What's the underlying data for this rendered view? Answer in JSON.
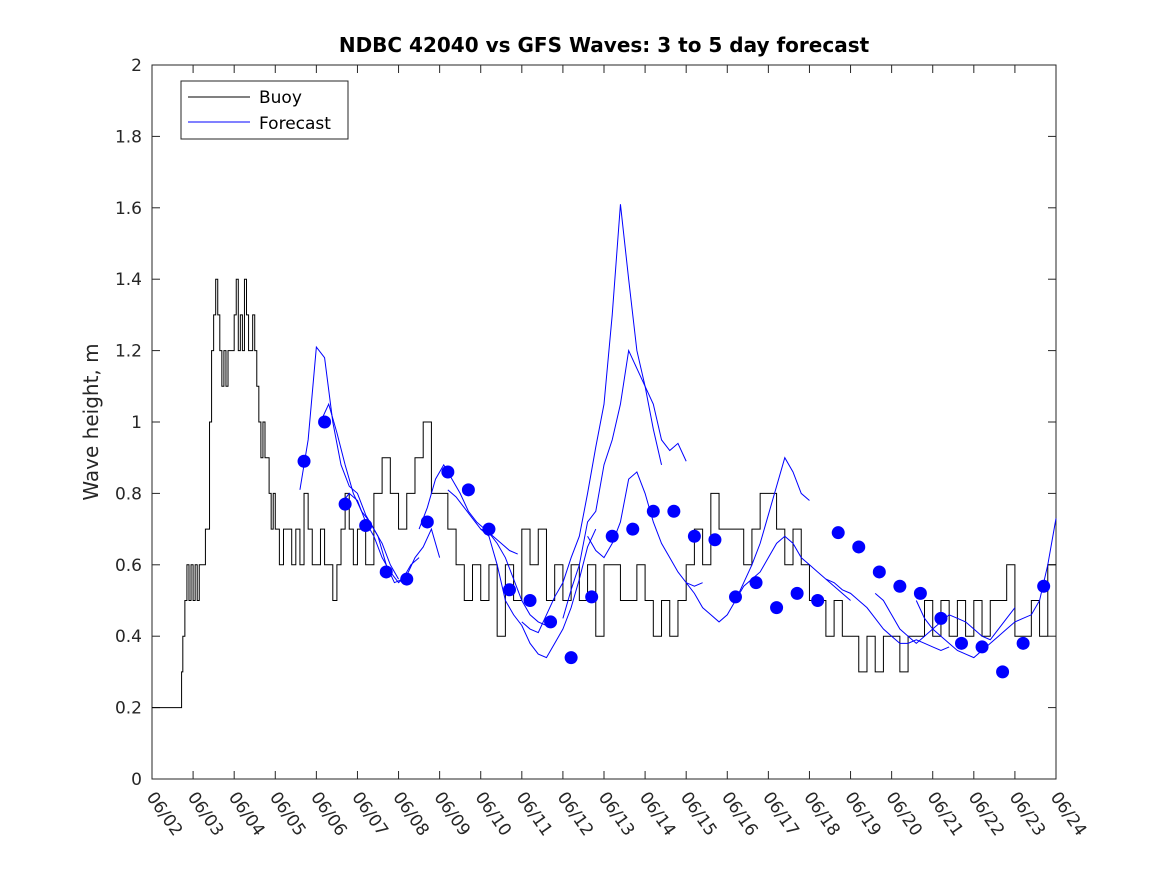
{
  "chart_data": {
    "type": "line",
    "title": "NDBC 42040 vs GFS Waves: 3 to 5 day forecast",
    "xlabel": "",
    "ylabel": "Wave height, m",
    "xlim": [
      "06/02",
      "06/24"
    ],
    "ylim": [
      0,
      2
    ],
    "x_ticks": [
      "06/02",
      "06/03",
      "06/04",
      "06/05",
      "06/06",
      "06/07",
      "06/08",
      "06/09",
      "06/10",
      "06/11",
      "06/12",
      "06/13",
      "06/14",
      "06/15",
      "06/16",
      "06/17",
      "06/18",
      "06/19",
      "06/20",
      "06/21",
      "06/22",
      "06/23",
      "06/24"
    ],
    "y_ticks": [
      0,
      0.2,
      0.4,
      0.6,
      0.8,
      1,
      1.2,
      1.4,
      1.6,
      1.8,
      2
    ],
    "y_tick_labels": [
      "0",
      "0.2",
      "0.4",
      "0.6",
      "0.8",
      "1",
      "1.2",
      "1.4",
      "1.6",
      "1.8",
      "2"
    ],
    "grid": false,
    "legend": {
      "placement": "top-left",
      "entries": [
        "Buoy",
        "Forecast"
      ]
    },
    "colors": {
      "buoy": "#000000",
      "forecast": "#0000ff",
      "marker": "#0000ff"
    },
    "series": [
      {
        "name": "Buoy",
        "color": "#000000",
        "x": [
          0,
          0.7,
          0.72,
          0.75,
          0.8,
          0.85,
          0.9,
          0.95,
          1.0,
          1.05,
          1.1,
          1.15,
          1.2,
          1.3,
          1.4,
          1.45,
          1.5,
          1.55,
          1.6,
          1.65,
          1.7,
          1.75,
          1.8,
          1.85,
          1.9,
          2.0,
          2.05,
          2.1,
          2.15,
          2.2,
          2.25,
          2.3,
          2.35,
          2.4,
          2.45,
          2.5,
          2.55,
          2.6,
          2.65,
          2.7,
          2.75,
          2.8,
          2.85,
          2.9,
          2.95,
          3.0,
          3.1,
          3.2,
          3.3,
          3.4,
          3.5,
          3.6,
          3.7,
          3.8,
          3.9,
          4.0,
          4.1,
          4.2,
          4.3,
          4.4,
          4.5,
          4.6,
          4.7,
          4.8,
          4.9,
          5.0,
          5.2,
          5.4,
          5.6,
          5.8,
          6.0,
          6.2,
          6.4,
          6.6,
          6.8,
          7.0,
          7.2,
          7.4,
          7.6,
          7.8,
          8.0,
          8.2,
          8.4,
          8.6,
          8.8,
          9.0,
          9.2,
          9.4,
          9.6,
          9.8,
          10.0,
          10.2,
          10.4,
          10.6,
          10.8,
          11.0,
          11.2,
          11.4,
          11.6,
          11.8,
          12.0,
          12.2,
          12.4,
          12.6,
          12.8,
          13.0,
          13.2,
          13.4,
          13.6,
          13.8,
          14.0,
          14.2,
          14.4,
          14.6,
          14.8,
          15.0,
          15.2,
          15.4,
          15.6,
          15.8,
          16.0,
          16.2,
          16.4,
          16.6,
          16.8,
          17.0,
          17.2,
          17.4,
          17.6,
          17.8,
          18.0,
          18.2,
          18.4,
          18.6,
          18.8,
          19.0,
          19.2,
          19.4,
          19.6,
          19.8,
          20.0,
          20.2,
          20.4,
          20.6,
          20.8,
          21.0,
          21.2,
          21.4,
          21.6,
          21.8,
          22.0
        ],
        "values": [
          0.2,
          0.2,
          0.3,
          0.4,
          0.5,
          0.6,
          0.5,
          0.6,
          0.5,
          0.6,
          0.5,
          0.6,
          0.6,
          0.7,
          1.0,
          1.2,
          1.3,
          1.4,
          1.3,
          1.2,
          1.1,
          1.2,
          1.1,
          1.2,
          1.2,
          1.3,
          1.4,
          1.2,
          1.3,
          1.2,
          1.4,
          1.3,
          1.2,
          1.2,
          1.3,
          1.2,
          1.1,
          1.0,
          0.9,
          1.0,
          0.9,
          0.9,
          0.8,
          0.7,
          0.8,
          0.7,
          0.6,
          0.7,
          0.7,
          0.6,
          0.7,
          0.6,
          0.8,
          0.7,
          0.6,
          0.6,
          0.7,
          0.6,
          0.6,
          0.5,
          0.6,
          0.7,
          0.8,
          0.7,
          0.6,
          0.7,
          0.6,
          0.8,
          0.9,
          0.8,
          0.7,
          0.8,
          0.9,
          1.0,
          0.8,
          0.8,
          0.7,
          0.6,
          0.5,
          0.6,
          0.5,
          0.6,
          0.4,
          0.6,
          0.5,
          0.7,
          0.6,
          0.7,
          0.5,
          0.6,
          0.5,
          0.6,
          0.5,
          0.6,
          0.4,
          0.6,
          0.6,
          0.5,
          0.5,
          0.6,
          0.5,
          0.4,
          0.5,
          0.4,
          0.5,
          0.6,
          0.7,
          0.6,
          0.8,
          0.7,
          0.7,
          0.7,
          0.6,
          0.7,
          0.8,
          0.8,
          0.7,
          0.6,
          0.7,
          0.6,
          0.5,
          0.5,
          0.4,
          0.5,
          0.4,
          0.4,
          0.3,
          0.4,
          0.3,
          0.4,
          0.4,
          0.3,
          0.4,
          0.4,
          0.5,
          0.4,
          0.5,
          0.4,
          0.5,
          0.4,
          0.5,
          0.4,
          0.5,
          0.5,
          0.6,
          0.4,
          0.4,
          0.5,
          0.4,
          0.6,
          0.6
        ]
      }
    ],
    "forecast_lines": [
      {
        "x": [
          3.6,
          3.8,
          4.0,
          4.2,
          4.4,
          4.6,
          4.8,
          5.0,
          5.2,
          5.4,
          5.6,
          5.8,
          6.0
        ],
        "values": [
          0.81,
          0.95,
          1.21,
          1.18,
          1.0,
          0.88,
          0.82,
          0.8,
          0.74,
          0.7,
          0.66,
          0.6,
          0.56
        ]
      },
      {
        "x": [
          4.1,
          4.3,
          4.5,
          4.7,
          4.9,
          5.1,
          5.3,
          5.5,
          5.7,
          5.9,
          6.1,
          6.3,
          6.5
        ],
        "values": [
          1.0,
          1.05,
          0.97,
          0.88,
          0.8,
          0.75,
          0.72,
          0.68,
          0.6,
          0.55,
          0.56,
          0.6,
          0.62
        ]
      },
      {
        "x": [
          4.6,
          4.8,
          5.0,
          5.2,
          5.4,
          5.6,
          5.8,
          6.0,
          6.2,
          6.4,
          6.6,
          6.8,
          7.0
        ],
        "values": [
          0.77,
          0.8,
          0.78,
          0.72,
          0.68,
          0.62,
          0.58,
          0.55,
          0.57,
          0.62,
          0.65,
          0.7,
          0.62
        ]
      },
      {
        "x": [
          6.5,
          6.7,
          6.9,
          7.1,
          7.3,
          7.5,
          7.7,
          7.9,
          8.1,
          8.3,
          8.5,
          8.7,
          8.9
        ],
        "values": [
          0.7,
          0.76,
          0.84,
          0.88,
          0.84,
          0.8,
          0.75,
          0.72,
          0.7,
          0.68,
          0.66,
          0.64,
          0.63
        ]
      },
      {
        "x": [
          7.2,
          7.4,
          7.6,
          7.8,
          8.0,
          8.2,
          8.4,
          8.6,
          8.8,
          9.0,
          9.2,
          9.4,
          9.6,
          9.8
        ],
        "values": [
          0.81,
          0.79,
          0.76,
          0.73,
          0.7,
          0.69,
          0.66,
          0.62,
          0.56,
          0.5,
          0.46,
          0.44,
          0.43,
          0.45
        ]
      },
      {
        "x": [
          8.0,
          8.2,
          8.4,
          8.6,
          8.8,
          9.0,
          9.2,
          9.4,
          9.6,
          9.8,
          10.0,
          10.2,
          10.4,
          10.6,
          10.8
        ],
        "values": [
          0.7,
          0.68,
          0.6,
          0.5,
          0.46,
          0.43,
          0.38,
          0.35,
          0.34,
          0.38,
          0.42,
          0.48,
          0.56,
          0.65,
          0.7
        ]
      },
      {
        "x": [
          9.0,
          9.2,
          9.4,
          9.6,
          9.8,
          10.0,
          10.2,
          10.4,
          10.6,
          10.8,
          11.0,
          11.2,
          11.4,
          11.6,
          11.8,
          12.0,
          12.2,
          12.4,
          12.6,
          12.8,
          13.0
        ],
        "values": [
          0.44,
          0.42,
          0.41,
          0.46,
          0.51,
          0.55,
          0.62,
          0.68,
          0.8,
          0.93,
          1.05,
          1.3,
          1.61,
          1.4,
          1.2,
          1.1,
          1.05,
          0.95,
          0.92,
          0.94,
          0.89
        ]
      },
      {
        "x": [
          10.0,
          10.2,
          10.4,
          10.6,
          10.8,
          11.0,
          11.2,
          11.4,
          11.6,
          11.8,
          12.0,
          12.2,
          12.4
        ],
        "values": [
          0.45,
          0.53,
          0.6,
          0.72,
          0.75,
          0.88,
          0.95,
          1.05,
          1.2,
          1.15,
          1.1,
          0.98,
          0.88
        ]
      },
      {
        "x": [
          10.6,
          10.8,
          11.0,
          11.2,
          11.4,
          11.6,
          11.8,
          12.0,
          12.2,
          12.4,
          12.6,
          12.8,
          13.0,
          13.2,
          13.4
        ],
        "values": [
          0.68,
          0.64,
          0.62,
          0.66,
          0.72,
          0.84,
          0.86,
          0.8,
          0.72,
          0.66,
          0.62,
          0.58,
          0.55,
          0.54,
          0.55
        ]
      },
      {
        "x": [
          13.0,
          13.2,
          13.4,
          13.6,
          13.8,
          14.0,
          14.2,
          14.4,
          14.6,
          14.8,
          15.0,
          15.2,
          15.4,
          15.6,
          15.8,
          16.0
        ],
        "values": [
          0.55,
          0.52,
          0.48,
          0.46,
          0.44,
          0.46,
          0.5,
          0.55,
          0.6,
          0.66,
          0.74,
          0.82,
          0.9,
          0.86,
          0.8,
          0.78
        ]
      },
      {
        "x": [
          14.2,
          14.4,
          14.6,
          14.8,
          15.0,
          15.2,
          15.4,
          15.6,
          15.8,
          16.0,
          16.2,
          16.4,
          16.6,
          16.8,
          17.0
        ],
        "values": [
          0.5,
          0.54,
          0.56,
          0.58,
          0.62,
          0.66,
          0.68,
          0.66,
          0.62,
          0.6,
          0.58,
          0.56,
          0.54,
          0.52,
          0.5
        ]
      },
      {
        "x": [
          16.4,
          16.6,
          16.8,
          17.0,
          17.2,
          17.4,
          17.6,
          17.8,
          18.0,
          18.2,
          18.4,
          18.6,
          18.8,
          19.0,
          19.2,
          19.4
        ],
        "values": [
          0.56,
          0.55,
          0.53,
          0.52,
          0.5,
          0.48,
          0.45,
          0.42,
          0.4,
          0.38,
          0.38,
          0.39,
          0.38,
          0.37,
          0.36,
          0.37
        ]
      },
      {
        "x": [
          17.6,
          17.8,
          18.0,
          18.2,
          18.4,
          18.6,
          18.8,
          19.0,
          19.2,
          19.4,
          19.6,
          19.8,
          20.0,
          20.2,
          20.4,
          20.6,
          20.8,
          21.0
        ],
        "values": [
          0.52,
          0.5,
          0.46,
          0.42,
          0.4,
          0.38,
          0.4,
          0.42,
          0.44,
          0.46,
          0.45,
          0.44,
          0.42,
          0.4,
          0.39,
          0.42,
          0.45,
          0.48
        ]
      },
      {
        "x": [
          18.6,
          18.8,
          19.0,
          19.2,
          19.4,
          19.6,
          19.8,
          20.0,
          20.2,
          20.4,
          20.6,
          20.8,
          21.0,
          21.2,
          21.4,
          21.6,
          21.8,
          22.0
        ],
        "values": [
          0.5,
          0.45,
          0.42,
          0.4,
          0.38,
          0.36,
          0.35,
          0.34,
          0.36,
          0.38,
          0.4,
          0.42,
          0.44,
          0.45,
          0.46,
          0.5,
          0.6,
          0.73
        ]
      }
    ],
    "markers": {
      "x": [
        3.7,
        4.2,
        4.7,
        5.2,
        5.7,
        6.2,
        6.7,
        7.2,
        7.7,
        8.2,
        8.7,
        9.2,
        9.7,
        10.2,
        10.7,
        11.2,
        11.7,
        12.2,
        12.7,
        13.2,
        13.7,
        14.2,
        14.7,
        15.2,
        15.7,
        16.2,
        16.7,
        17.2,
        17.7,
        18.2,
        18.7,
        19.2,
        19.7,
        20.2,
        20.7,
        21.2,
        21.7
      ],
      "values": [
        0.89,
        1.0,
        0.77,
        0.71,
        0.58,
        0.56,
        0.72,
        0.86,
        0.81,
        0.7,
        0.53,
        0.5,
        0.44,
        0.34,
        0.51,
        0.68,
        0.7,
        0.75,
        0.75,
        0.68,
        0.67,
        0.51,
        0.55,
        0.48,
        0.52,
        0.5,
        0.69,
        0.65,
        0.58,
        0.54,
        0.52,
        0.45,
        0.38,
        0.37,
        0.3,
        0.38,
        0.54
      ]
    }
  }
}
